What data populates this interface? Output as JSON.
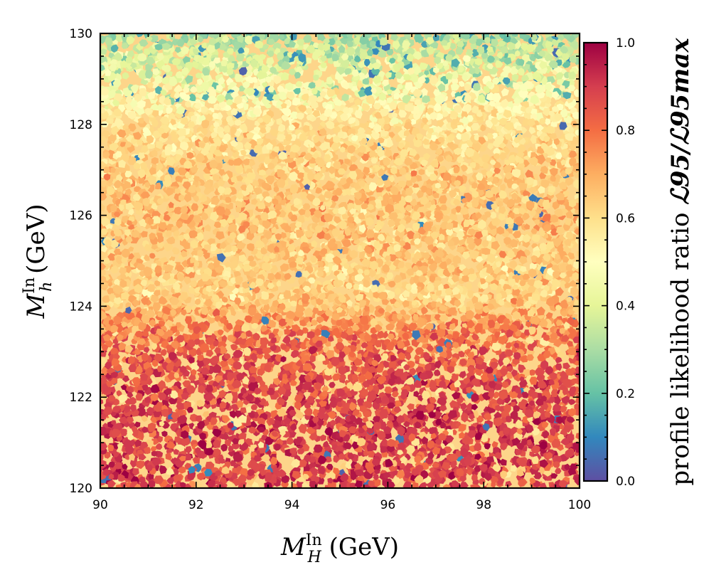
{
  "chart_data": {
    "type": "heatmap",
    "plot_kind": "scatter-density",
    "x_axis": {
      "label_main": "M",
      "label_sup": "In",
      "label_sub": "H",
      "label_unit": " (GeV)",
      "range": [
        90,
        100
      ],
      "ticks": [
        90,
        92,
        94,
        96,
        98,
        100
      ],
      "tick_labels": [
        "90",
        "92",
        "94",
        "96",
        "98",
        "100"
      ]
    },
    "y_axis": {
      "label_main": "M",
      "label_sup": "In",
      "label_sub": "h",
      "label_unit": " (GeV)",
      "range": [
        120,
        130
      ],
      "ticks": [
        120,
        122,
        124,
        126,
        128,
        130
      ],
      "tick_labels": [
        "120",
        "122",
        "124",
        "126",
        "128",
        "130"
      ]
    },
    "colorbar": {
      "label_text": "profile likelihood ratio ",
      "label_math": "ℒ95/ℒ95max",
      "range": [
        0.0,
        1.0
      ],
      "ticks": [
        0.0,
        0.2,
        0.4,
        0.6,
        0.8,
        1.0
      ],
      "tick_labels": [
        "0.0",
        "0.2",
        "0.4",
        "0.6",
        "0.8",
        "1.0"
      ],
      "colormap": "Spectral_r"
    },
    "density_profile": {
      "description_mode": "mean likelihood vs Mh with random scatter",
      "y_levels": [
        120,
        121,
        122,
        123,
        123.7,
        124.2,
        125,
        126,
        127,
        128,
        129,
        130
      ],
      "mean_values": [
        0.88,
        0.9,
        0.88,
        0.84,
        0.74,
        0.62,
        0.64,
        0.66,
        0.64,
        0.58,
        0.45,
        0.3
      ]
    },
    "point_count": 9000
  },
  "colors": {
    "colormap_stops": [
      "#5e4fa2",
      "#3288bd",
      "#66c2a5",
      "#abdda4",
      "#e6f598",
      "#ffffbf",
      "#fee08b",
      "#fdae61",
      "#f46d43",
      "#d53e4f",
      "#9e0142"
    ]
  }
}
